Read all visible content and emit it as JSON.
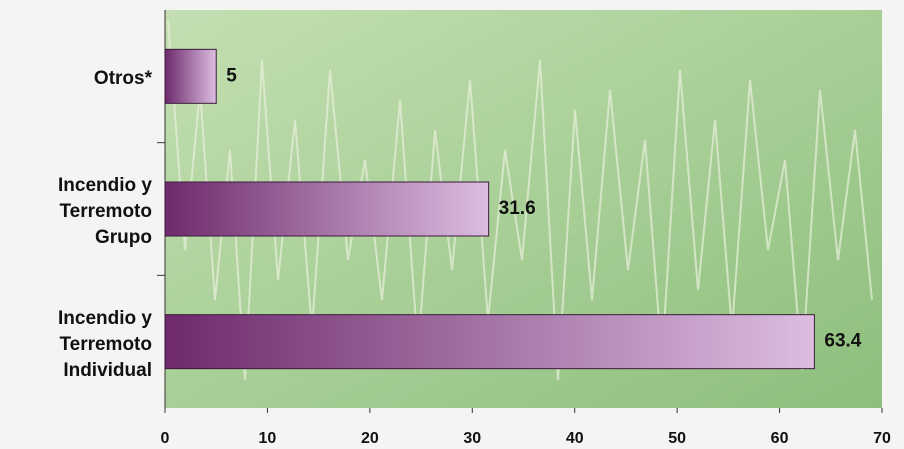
{
  "chart_data": {
    "type": "barh",
    "categories": [
      "Otros*",
      "Incendio y\nTerremoto\nGrupo",
      "Incendio y\nTerremoto\nIndividual"
    ],
    "values": [
      5,
      31.6,
      63.4
    ],
    "color": "#6e2a6c",
    "xlim": [
      0,
      70
    ],
    "xticks": [
      0,
      10,
      20,
      30,
      40,
      50,
      60,
      70
    ]
  }
}
